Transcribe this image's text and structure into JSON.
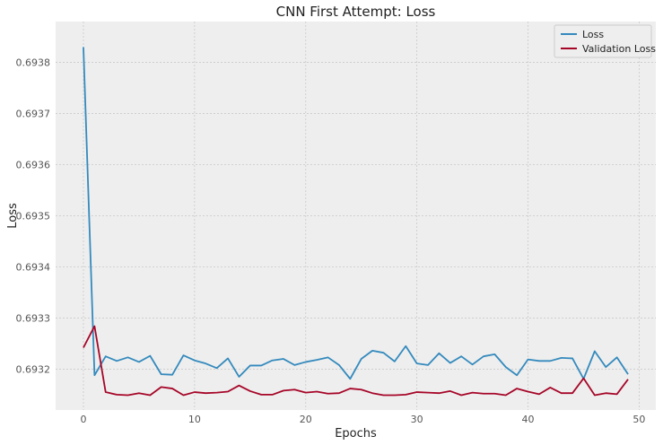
{
  "chart_data": {
    "type": "line",
    "title": "CNN First Attempt: Loss",
    "xlabel": "Epochs",
    "ylabel": "Loss",
    "xlim": [
      -2.5,
      51.5
    ],
    "ylim": [
      0.69312,
      0.69388
    ],
    "xticks": [
      0,
      10,
      20,
      30,
      40,
      50
    ],
    "yticks": [
      0.6932,
      0.6933,
      0.6934,
      0.6935,
      0.6936,
      0.6937,
      0.6938
    ],
    "grid": true,
    "legend_position": "top-right",
    "background": "#eeeeee",
    "x": [
      0,
      1,
      2,
      3,
      4,
      5,
      6,
      7,
      8,
      9,
      10,
      11,
      12,
      13,
      14,
      15,
      16,
      17,
      18,
      19,
      20,
      21,
      22,
      23,
      24,
      25,
      26,
      27,
      28,
      29,
      30,
      31,
      32,
      33,
      34,
      35,
      36,
      37,
      38,
      39,
      40,
      41,
      42,
      43,
      44,
      45,
      46,
      47,
      48,
      49
    ],
    "series": [
      {
        "name": "Loss",
        "color": "#348abd",
        "values": [
          0.69383,
          0.693188,
          0.693225,
          0.693216,
          0.693223,
          0.693214,
          0.693226,
          0.69319,
          0.693189,
          0.693227,
          0.693217,
          0.693211,
          0.693202,
          0.693221,
          0.693185,
          0.693207,
          0.693207,
          0.693217,
          0.69322,
          0.693208,
          0.693214,
          0.693218,
          0.693223,
          0.693208,
          0.693181,
          0.69322,
          0.693236,
          0.693232,
          0.693215,
          0.693245,
          0.693211,
          0.693208,
          0.693231,
          0.693212,
          0.693225,
          0.693209,
          0.693225,
          0.693229,
          0.693204,
          0.693188,
          0.693219,
          0.693216,
          0.693216,
          0.693222,
          0.693221,
          0.693181,
          0.693235,
          0.693204,
          0.693223,
          0.69319
        ]
      },
      {
        "name": "Validation Loss",
        "color": "#a60628",
        "values": [
          0.693242,
          0.693284,
          0.693155,
          0.69315,
          0.693149,
          0.693153,
          0.693149,
          0.693165,
          0.693162,
          0.693149,
          0.693155,
          0.693153,
          0.693154,
          0.693156,
          0.693168,
          0.693157,
          0.69315,
          0.69315,
          0.693158,
          0.69316,
          0.693154,
          0.693156,
          0.693152,
          0.693153,
          0.693162,
          0.69316,
          0.693153,
          0.693149,
          0.693149,
          0.69315,
          0.693155,
          0.693154,
          0.693153,
          0.693157,
          0.693149,
          0.693154,
          0.693152,
          0.693152,
          0.693149,
          0.693162,
          0.693156,
          0.693151,
          0.693164,
          0.693153,
          0.693153,
          0.693182,
          0.693149,
          0.693153,
          0.693151,
          0.69318
        ]
      }
    ]
  }
}
